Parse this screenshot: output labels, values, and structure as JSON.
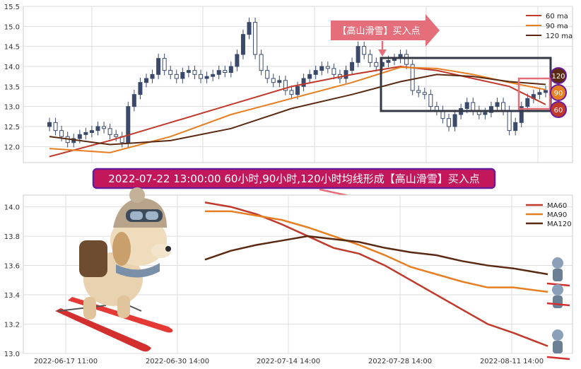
{
  "annotation": {
    "callout": "【高山滑雪】买入点",
    "caption": "2022-07-22 13:00:00 60小时,90小时,120小时均线形成【高山滑雪】买入点",
    "badges": [
      "120",
      "90",
      "60"
    ]
  },
  "colors": {
    "ma60": "#c0392b",
    "ma90": "#e67e22",
    "ma120": "#5b2a12",
    "callout": "#e46f7b",
    "caption_fill": "#c2185b",
    "caption_border": "#6a1b9a",
    "box": "#333844",
    "candle_up": "#3b4a6b",
    "grid": "#dddddd"
  },
  "icons": {
    "mascot": "puppy-skier-icon",
    "mini": "mini-skier-icon"
  },
  "chart_data": [
    {
      "type": "candlestick+line",
      "title": "",
      "x_ticks": [],
      "ylim": [
        11.6,
        15.5
      ],
      "y_ticks": [
        "12.0",
        "12.5",
        "13.0",
        "13.5",
        "14.0",
        "14.5",
        "15.0",
        "15.5"
      ],
      "grid": true,
      "legend": "top-right",
      "legend_entries": [
        "60 ma",
        "90 ma",
        "120 ma"
      ],
      "candles_close_approx": [
        12.6,
        12.4,
        12.25,
        12.1,
        12.2,
        12.3,
        12.35,
        12.4,
        12.5,
        12.45,
        12.3,
        12.25,
        12.1,
        13.0,
        13.3,
        13.6,
        13.7,
        13.8,
        14.2,
        13.9,
        13.8,
        13.7,
        13.85,
        13.9,
        13.8,
        13.7,
        13.75,
        13.8,
        13.9,
        13.85,
        14.0,
        14.3,
        14.8,
        15.1,
        14.3,
        13.9,
        13.7,
        13.6,
        13.65,
        13.4,
        13.3,
        13.5,
        13.7,
        13.8,
        13.9,
        14.0,
        13.95,
        13.8,
        13.7,
        13.9,
        14.1,
        14.5,
        14.3,
        14.1,
        14.0,
        14.1,
        14.15,
        14.2,
        14.3,
        14.05,
        13.4,
        13.35,
        13.3,
        13.0,
        12.9,
        12.7,
        12.5,
        12.8,
        12.95,
        13.1,
        12.9,
        12.8,
        12.85,
        13.0,
        13.1,
        12.9,
        12.4,
        12.6,
        13.0,
        13.2,
        13.3,
        13.35,
        13.4
      ],
      "series": [
        {
          "name": "60 ma",
          "x_idx": [
            0,
            10,
            20,
            30,
            40,
            50,
            58,
            64,
            70,
            76,
            82
          ],
          "y": [
            11.75,
            12.15,
            12.6,
            13.05,
            13.5,
            13.8,
            14.0,
            13.9,
            13.7,
            13.5,
            13.05
          ]
        },
        {
          "name": "90 ma",
          "x_idx": [
            0,
            10,
            20,
            30,
            40,
            50,
            58,
            64,
            70,
            76,
            82
          ],
          "y": [
            11.95,
            11.85,
            12.25,
            12.8,
            13.2,
            13.6,
            13.98,
            13.95,
            13.8,
            13.6,
            13.42
          ]
        },
        {
          "name": "120 ma",
          "x_idx": [
            0,
            10,
            20,
            30,
            40,
            50,
            58,
            64,
            70,
            76,
            82
          ],
          "y": [
            12.25,
            12.05,
            12.15,
            12.45,
            12.95,
            13.3,
            13.62,
            13.8,
            13.75,
            13.62,
            13.55
          ]
        }
      ]
    },
    {
      "type": "line",
      "title": "",
      "x_ticks": [
        "2022-06-17 11:00",
        "2022-06-30 14:00",
        "2022-07-14 14:00",
        "2022-07-28 14:00",
        "2022-08-11 14:00"
      ],
      "ylim": [
        13.0,
        14.08
      ],
      "y_ticks": [
        "13.0",
        "13.2",
        "13.4",
        "13.6",
        "13.8",
        "14.0"
      ],
      "grid": true,
      "legend": "top-right",
      "legend_entries": [
        "MA60",
        "MA90",
        "MA120"
      ],
      "series": [
        {
          "name": "MA60",
          "x_idx": [
            0,
            3,
            6,
            9,
            12,
            15,
            18,
            21,
            24,
            27,
            30,
            33,
            36,
            40
          ],
          "y": [
            14.03,
            14.0,
            13.95,
            13.88,
            13.8,
            13.72,
            13.68,
            13.6,
            13.5,
            13.4,
            13.3,
            13.2,
            13.14,
            13.05
          ]
        },
        {
          "name": "MA90",
          "x_idx": [
            0,
            3,
            6,
            9,
            12,
            15,
            18,
            21,
            24,
            27,
            30,
            33,
            36,
            40
          ],
          "y": [
            13.97,
            13.97,
            13.94,
            13.91,
            13.86,
            13.8,
            13.74,
            13.67,
            13.59,
            13.54,
            13.49,
            13.45,
            13.45,
            13.42
          ]
        },
        {
          "name": "MA120",
          "x_idx": [
            0,
            3,
            6,
            9,
            12,
            15,
            18,
            21,
            24,
            27,
            30,
            33,
            36,
            40
          ],
          "y": [
            13.64,
            13.7,
            13.74,
            13.77,
            13.8,
            13.78,
            13.76,
            13.72,
            13.69,
            13.67,
            13.63,
            13.6,
            13.58,
            13.54
          ]
        }
      ]
    }
  ]
}
